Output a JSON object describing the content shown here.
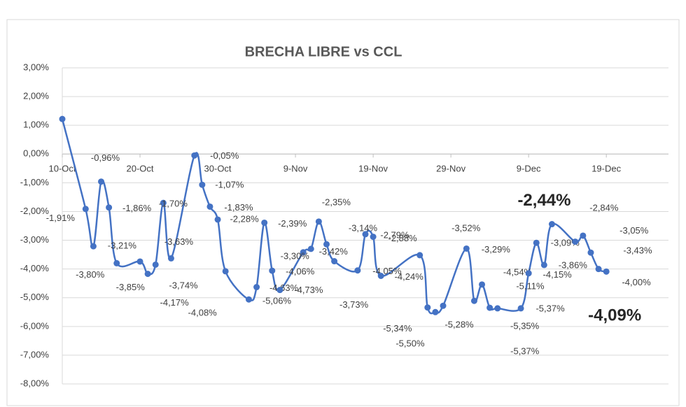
{
  "chart_data": {
    "type": "line",
    "title": "BRECHA LIBRE vs CCL",
    "x": [
      "10-Oct",
      "13-Oct",
      "14-Oct",
      "15-Oct",
      "16-Oct",
      "17-Oct",
      "20-Oct",
      "21-Oct",
      "22-Oct",
      "23-Oct",
      "24-Oct",
      "27-Oct",
      "28-Oct",
      "29-Oct",
      "30-Oct",
      "31-Oct",
      "3-Nov",
      "4-Nov",
      "5-Nov",
      "6-Nov",
      "7-Nov",
      "10-Nov",
      "11-Nov",
      "12-Nov",
      "13-Nov",
      "14-Nov",
      "17-Nov",
      "18-Nov",
      "19-Nov",
      "20-Nov",
      "25-Nov",
      "26-Nov",
      "27-Nov",
      "28-Nov",
      "1-Dec",
      "2-Dec",
      "3-Dec",
      "4-Dec",
      "5-Dec",
      "8-Dec",
      "9-Dec",
      "10-Dec",
      "11-Dec",
      "12-Dec",
      "15-Dec",
      "16-Dec",
      "17-Dec",
      "18-Dec",
      "19-Dec"
    ],
    "series": [
      {
        "name": "BRECHA LIBRE vs CCL",
        "color": "#4472c4",
        "values": [
          1.22,
          -1.91,
          -3.21,
          -0.96,
          -1.86,
          -3.8,
          -3.74,
          -4.17,
          -3.85,
          -1.7,
          -3.63,
          -0.05,
          -1.07,
          -1.83,
          -2.28,
          -4.08,
          -5.06,
          -4.63,
          -2.39,
          -4.06,
          -4.73,
          -3.42,
          -3.3,
          -2.35,
          -3.14,
          -3.73,
          -4.05,
          -2.79,
          -2.88,
          -4.24,
          -3.52,
          -5.34,
          -5.5,
          -5.28,
          -3.29,
          -5.11,
          -4.54,
          -5.35,
          -5.37,
          -5.37,
          -4.15,
          -3.09,
          -3.86,
          -2.44,
          -3.05,
          -2.84,
          -3.43,
          -4.0,
          -4.09
        ],
        "value_labels": [
          null,
          "-1,91%",
          "-3,21%",
          "-0,96%",
          "-1,86%",
          "-3,80%",
          "-3,74%",
          "-4,17%",
          "-3,85%",
          "-1,70%",
          "-3,63%",
          "-0,05%",
          "-1,07%",
          "-1,83%",
          "-2,28%",
          "-4,08%",
          "-5,06%",
          "-4,63%",
          "-2,39%",
          "-4,06%",
          "-4,73%",
          "-3,42%",
          "-3,30%",
          "-2,35%",
          "-3,14%",
          "-3,73%",
          "-4,05%",
          "-2,79%",
          "-2,88%",
          "-4,24%",
          "-3,52%",
          "-5,34%",
          "-5,50%",
          "-5,28%",
          "-3,29%",
          "-5,11%",
          "-4,54%",
          "-5,35%",
          "-5,37%",
          "-5,37%",
          "-4,15%",
          "-3,09%",
          "-3,86%",
          "-2,44%",
          "-3,05%",
          "-2,84%",
          "-3,43%",
          "-4,00%",
          "-4,09%"
        ]
      }
    ],
    "xlim": [
      "10-Oct",
      "27-Dec"
    ],
    "xticks": [
      "10-Oct",
      "20-Oct",
      "30-Oct",
      "9-Nov",
      "19-Nov",
      "29-Nov",
      "9-Dec",
      "19-Dec"
    ],
    "ylim": [
      -8,
      3
    ],
    "yticks": [
      {
        "value": 3,
        "label": "3,00%"
      },
      {
        "value": 2,
        "label": "2,00%"
      },
      {
        "value": 1,
        "label": "1,00%"
      },
      {
        "value": 0,
        "label": "0,00%"
      },
      {
        "value": -1,
        "label": "-1,00%"
      },
      {
        "value": -2,
        "label": "-2,00%"
      },
      {
        "value": -3,
        "label": "-3,00%"
      },
      {
        "value": -4,
        "label": "-4,00%"
      },
      {
        "value": -5,
        "label": "-5,00%"
      },
      {
        "value": -6,
        "label": "-6,00%"
      },
      {
        "value": -7,
        "label": "-7,00%"
      },
      {
        "value": -8,
        "label": "-8,00%"
      }
    ],
    "grid": true
  }
}
